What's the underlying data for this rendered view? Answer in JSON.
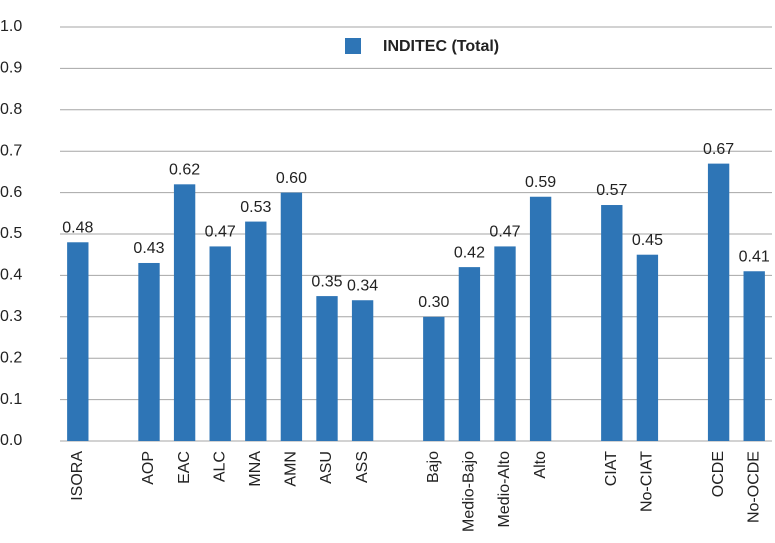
{
  "chart_data": {
    "type": "bar",
    "categories": [
      "ISORA",
      null,
      "AOP",
      "EAC",
      "ALC",
      "MNA",
      "AMN",
      "ASU",
      "ASS",
      null,
      "Bajo",
      "Medio-Bajo",
      "Medio-Alto",
      "Alto",
      null,
      "CIAT",
      "No-CIAT",
      null,
      "OCDE",
      "No-OCDE"
    ],
    "series": [
      {
        "name": "INDITEC (Total)",
        "color": "#2e75b6",
        "values": [
          0.48,
          null,
          0.43,
          0.62,
          0.47,
          0.53,
          0.6,
          0.35,
          0.34,
          null,
          0.3,
          0.42,
          0.47,
          0.59,
          null,
          0.57,
          0.45,
          null,
          0.67,
          0.41
        ],
        "value_labels": [
          "0.48",
          null,
          "0.43",
          "0.62",
          "0.47",
          "0.53",
          "0.60",
          "0.35",
          "0.34",
          null,
          "0.30",
          "0.42",
          "0.47",
          "0.59",
          null,
          "0.57",
          "0.45",
          null,
          "0.67",
          "0.41"
        ]
      }
    ],
    "ylim": [
      0,
      1
    ],
    "yticks": [
      {
        "value": 0,
        "label": "0.0"
      },
      0.1,
      0.2,
      0.3,
      0.4,
      0.5,
      0.6,
      0.7,
      0.8,
      0.9,
      {
        "value": 1,
        "label": "1.0"
      }
    ],
    "grid": true,
    "legend": "top"
  }
}
